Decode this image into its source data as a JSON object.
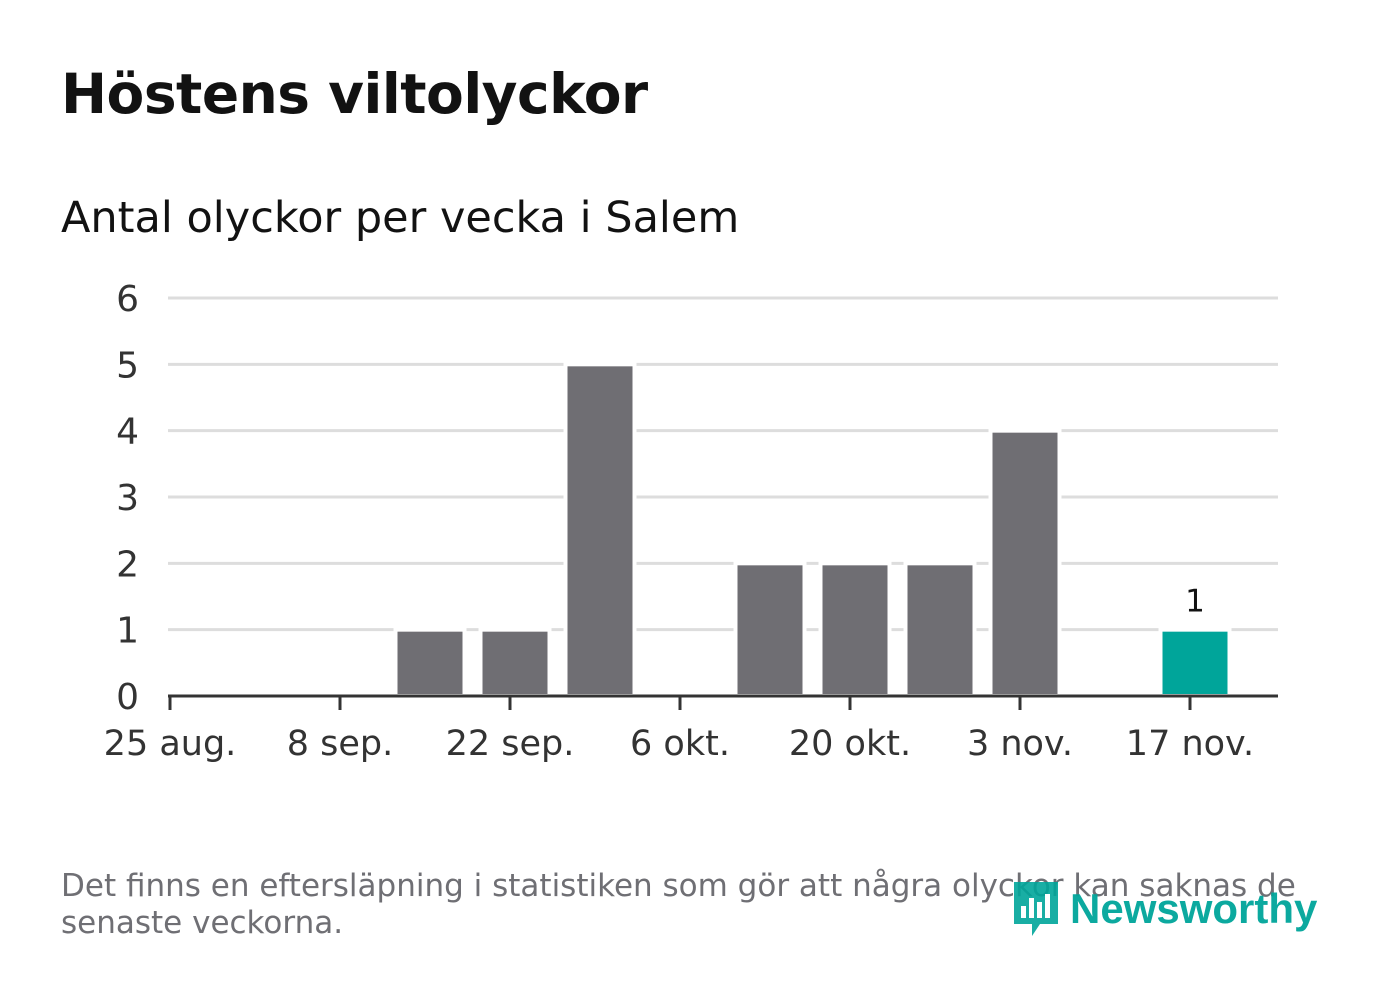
{
  "title": "Höstens viltolyckor",
  "subtitle": "Antal olyckor per vecka i Salem",
  "note": "Det finns en eftersläpning i statistiken som gör att några olyckor kan saknas de senaste veckorna.",
  "logo": {
    "text": "Newsworthy",
    "icon": "newsworthy-logo-icon",
    "color": "#00a59a"
  },
  "colors": {
    "bar": "#6f6e73",
    "highlight": "#00a59a",
    "grid": "#dddddd",
    "axis": "#333333"
  },
  "chart_data": {
    "type": "bar",
    "ylim": [
      0,
      6
    ],
    "y_ticks": [
      "0",
      "1",
      "2",
      "3",
      "4",
      "5",
      "6"
    ],
    "x_tick_labels": [
      "25 aug.",
      "8 sep.",
      "22 sep.",
      "6 okt.",
      "20 okt.",
      "3 nov.",
      "17 nov."
    ],
    "categories": [
      "25 aug.",
      "1 sep.",
      "8 sep.",
      "15 sep.",
      "22 sep.",
      "29 sep.",
      "6 okt.",
      "13 okt.",
      "20 okt.",
      "27 okt.",
      "3 nov.",
      "10 nov.",
      "17 nov."
    ],
    "values": [
      0,
      0,
      0,
      1,
      1,
      5,
      0,
      2,
      2,
      2,
      4,
      0,
      1
    ],
    "highlight_index": 12,
    "data_labels": [
      {
        "index": 12,
        "text": "1"
      }
    ],
    "grid": true,
    "legend": "none"
  }
}
